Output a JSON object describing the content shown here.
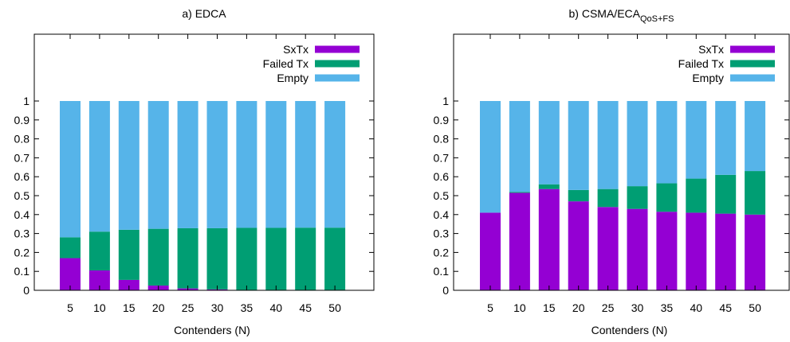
{
  "chart_data": [
    {
      "type": "bar",
      "stacked": true,
      "title": "a) EDCA",
      "title_sub": "",
      "xlabel": "Contenders (N)",
      "ylabel": "",
      "ylim": [
        0,
        1
      ],
      "yticks": [
        "0",
        "0.1",
        "0.2",
        "0.3",
        "0.4",
        "0.5",
        "0.6",
        "0.7",
        "0.8",
        "0.9",
        "1"
      ],
      "categories": [
        "5",
        "10",
        "15",
        "20",
        "25",
        "30",
        "35",
        "40",
        "45",
        "50"
      ],
      "legend_position": "top-right",
      "grid": false,
      "series": [
        {
          "name": "SxTx",
          "color": "#9400d3",
          "values": [
            0.17,
            0.105,
            0.055,
            0.025,
            0.01,
            0.005,
            0.002,
            0.001,
            0.0,
            0.0
          ]
        },
        {
          "name": "Failed Tx",
          "color": "#009e73",
          "values": [
            0.11,
            0.205,
            0.265,
            0.3,
            0.318,
            0.323,
            0.328,
            0.329,
            0.331,
            0.331
          ]
        },
        {
          "name": "Empty",
          "color": "#56b4e9",
          "values": [
            0.72,
            0.69,
            0.68,
            0.675,
            0.672,
            0.672,
            0.67,
            0.67,
            0.669,
            0.669
          ]
        }
      ]
    },
    {
      "type": "bar",
      "stacked": true,
      "title": "b) CSMA/ECA",
      "title_sub": "QoS+FS",
      "xlabel": "Contenders (N)",
      "ylabel": "",
      "ylim": [
        0,
        1
      ],
      "yticks": [
        "0",
        "0.1",
        "0.2",
        "0.3",
        "0.4",
        "0.5",
        "0.6",
        "0.7",
        "0.8",
        "0.9",
        "1"
      ],
      "categories": [
        "5",
        "10",
        "15",
        "20",
        "25",
        "30",
        "35",
        "40",
        "45",
        "50"
      ],
      "legend_position": "top-right",
      "grid": false,
      "series": [
        {
          "name": "SxTx",
          "color": "#9400d3",
          "values": [
            0.41,
            0.515,
            0.535,
            0.47,
            0.44,
            0.43,
            0.415,
            0.41,
            0.405,
            0.4
          ]
        },
        {
          "name": "Failed Tx",
          "color": "#009e73",
          "values": [
            0.0,
            0.005,
            0.025,
            0.06,
            0.095,
            0.12,
            0.15,
            0.18,
            0.205,
            0.23
          ]
        },
        {
          "name": "Empty",
          "color": "#56b4e9",
          "values": [
            0.59,
            0.48,
            0.44,
            0.47,
            0.465,
            0.45,
            0.435,
            0.41,
            0.39,
            0.37
          ]
        }
      ]
    }
  ]
}
